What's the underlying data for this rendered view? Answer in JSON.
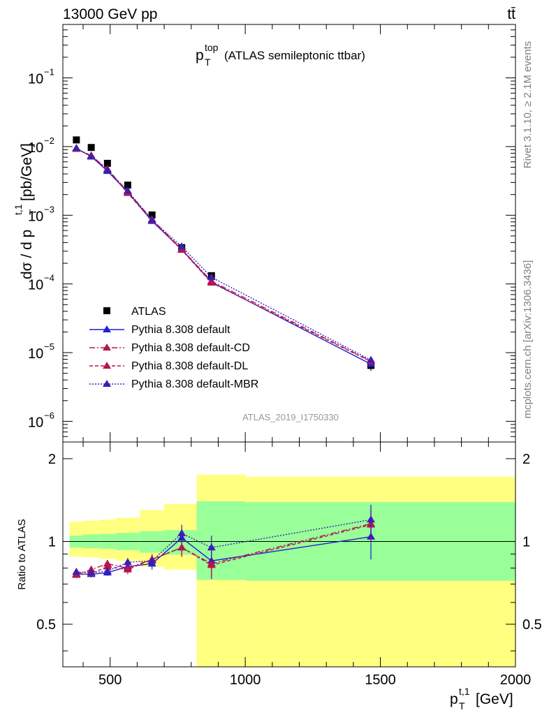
{
  "header": {
    "energy_label": "13000 GeV pp",
    "process_label": "tt̄",
    "rivet_label": "Rivet 3.1.10, ≥ 2.1M events",
    "mcplots_label": "mcplots.cern.ch [arXiv:1306.3436]",
    "analysis_id": "ATLAS_2019_I1750330"
  },
  "chart_data": [
    {
      "type": "line",
      "title_main": "p",
      "title_sup": "top",
      "title_sub": "T",
      "title_rest": "(ATLAS semileptonic ttbar)",
      "ylabel_a": "dσ / d p",
      "ylabel_sup": "t,1",
      "ylabel_sub": "T",
      "ylabel_b": "[pb/GeV]",
      "yscale": "log",
      "xlim": [
        325,
        2000
      ],
      "ylim": [
        5e-07,
        0.6
      ],
      "y_tick_labels": [
        {
          "value": 1e-06,
          "base": "10",
          "exp": "−6"
        },
        {
          "value": 1e-05,
          "base": "10",
          "exp": "−5"
        },
        {
          "value": 0.0001,
          "base": "10",
          "exp": "−4"
        },
        {
          "value": 0.001,
          "base": "10",
          "exp": "−3"
        },
        {
          "value": 0.01,
          "base": "10",
          "exp": "−2"
        },
        {
          "value": 0.1,
          "base": "10",
          "exp": "−1"
        }
      ],
      "legend_position": "lower-left",
      "series": [
        {
          "name": "ATLAS",
          "marker": "square",
          "color": "#000000",
          "x": [
            375,
            430,
            490,
            565,
            655,
            765,
            875,
            1465
          ],
          "y": [
            0.0125,
            0.0097,
            0.0057,
            0.00275,
            0.00101,
            0.000338,
            0.000132,
            6.5e-06
          ],
          "yerr_rel": [
            0.05,
            0.05,
            0.05,
            0.05,
            0.06,
            0.08,
            0.1,
            0.17
          ]
        },
        {
          "name": "Pythia 8.308 default",
          "marker": "triangle",
          "color": "#1f1fd0",
          "dash": "",
          "x": [
            375,
            430,
            490,
            565,
            655,
            765,
            875,
            1465
          ],
          "y": [
            0.0094,
            0.0072,
            0.0044,
            0.00218,
            0.00082,
            0.000318,
            0.000106,
            6.8e-06
          ]
        },
        {
          "name": "Pythia 8.308 default-CD",
          "marker": "triangle",
          "color": "#b5174e",
          "dash": "8,3,2,3",
          "x": [
            375,
            430,
            490,
            565,
            655,
            765,
            875,
            1465
          ],
          "y": [
            0.0093,
            0.0074,
            0.0047,
            0.0022,
            0.00087,
            0.00032,
            0.00011,
            7.5e-06
          ]
        },
        {
          "name": "Pythia 8.308 default-DL",
          "marker": "triangle",
          "color": "#b5174e",
          "dash": "5,3",
          "x": [
            375,
            430,
            490,
            565,
            655,
            765,
            875,
            1465
          ],
          "y": [
            0.0092,
            0.0073,
            0.0046,
            0.0021,
            0.00083,
            0.000312,
            0.000104,
            7.4e-06
          ]
        },
        {
          "name": "Pythia 8.308 default-MBR",
          "marker": "triangle",
          "color": "#3a1fb5",
          "dash": "2,2",
          "x": [
            375,
            430,
            490,
            565,
            655,
            765,
            875,
            1465
          ],
          "y": [
            0.0095,
            0.0071,
            0.0045,
            0.00227,
            0.00085,
            0.00035,
            0.000125,
            7.8e-06
          ]
        }
      ]
    },
    {
      "type": "line",
      "ylabel": "Ratio to ATLAS",
      "xlabel_a": "p",
      "xlabel_sup": "t,1",
      "xlabel_sub": "T",
      "xlabel_b": "[GeV]",
      "xlim": [
        325,
        2000
      ],
      "ylim": [
        0.35,
        2.3
      ],
      "yscale": "log",
      "x_tick_labels": [
        "500",
        "1000",
        "1500",
        "2000"
      ],
      "x_ticks": [
        500,
        1000,
        1500,
        2000
      ],
      "y_tick_labels": [
        "0.5",
        "1",
        "2"
      ],
      "y_ticks": [
        0.5,
        1,
        2
      ],
      "bands": {
        "colors": {
          "outer": "#ffff80",
          "inner": "#99ff99"
        },
        "edges": [
          350,
          400,
          460,
          520,
          610,
          700,
          820,
          1000,
          2000
        ],
        "inner": [
          [
            0.95,
            1.05
          ],
          [
            0.945,
            1.06
          ],
          [
            0.94,
            1.065
          ],
          [
            0.93,
            1.075
          ],
          [
            0.91,
            1.09
          ],
          [
            0.895,
            1.1
          ],
          [
            0.725,
            1.4
          ],
          [
            0.72,
            1.39
          ]
        ],
        "outer": [
          [
            0.88,
            1.18
          ],
          [
            0.875,
            1.19
          ],
          [
            0.865,
            1.2
          ],
          [
            0.85,
            1.22
          ],
          [
            0.81,
            1.3
          ],
          [
            0.79,
            1.37
          ],
          [
            0.35,
            1.75
          ],
          [
            0.35,
            1.72
          ]
        ]
      },
      "series": [
        {
          "name": "Pythia 8.308 default",
          "color": "#1f1fd0",
          "dash": "",
          "x": [
            375,
            430,
            490,
            565,
            655,
            765,
            875,
            1465
          ],
          "y": [
            0.762,
            0.76,
            0.77,
            0.81,
            0.83,
            1.03,
            0.85,
            1.04
          ],
          "err": [
            0.02,
            0.02,
            0.02,
            0.03,
            0.04,
            0.08,
            0.12,
            0.18
          ]
        },
        {
          "name": "Pythia 8.308 default-CD",
          "color": "#b5174e",
          "dash": "8,3,2,3",
          "x": [
            375,
            430,
            490,
            565,
            655,
            765,
            875,
            1465
          ],
          "y": [
            0.757,
            0.79,
            0.83,
            0.8,
            0.86,
            0.95,
            0.83,
            1.16
          ],
          "err": [
            0.02,
            0.02,
            0.02,
            0.03,
            0.04,
            0.07,
            0.08,
            0.15
          ]
        },
        {
          "name": "Pythia 8.308 default-DL",
          "color": "#b5174e",
          "dash": "5,3",
          "x": [
            375,
            430,
            490,
            565,
            655,
            765,
            875,
            1465
          ],
          "y": [
            0.755,
            0.765,
            0.81,
            0.79,
            0.86,
            0.95,
            0.82,
            1.15
          ],
          "err": [
            0.02,
            0.02,
            0.02,
            0.03,
            0.04,
            0.07,
            0.08,
            0.15
          ]
        },
        {
          "name": "Pythia 8.308 default-MBR",
          "color": "#3a1fb5",
          "dash": "2,2",
          "x": [
            375,
            430,
            490,
            565,
            655,
            765,
            875,
            1465
          ],
          "y": [
            0.775,
            0.77,
            0.78,
            0.84,
            0.85,
            1.07,
            0.95,
            1.2
          ],
          "err": [
            0.02,
            0.02,
            0.02,
            0.03,
            0.04,
            0.08,
            0.1,
            0.16
          ]
        }
      ]
    }
  ]
}
